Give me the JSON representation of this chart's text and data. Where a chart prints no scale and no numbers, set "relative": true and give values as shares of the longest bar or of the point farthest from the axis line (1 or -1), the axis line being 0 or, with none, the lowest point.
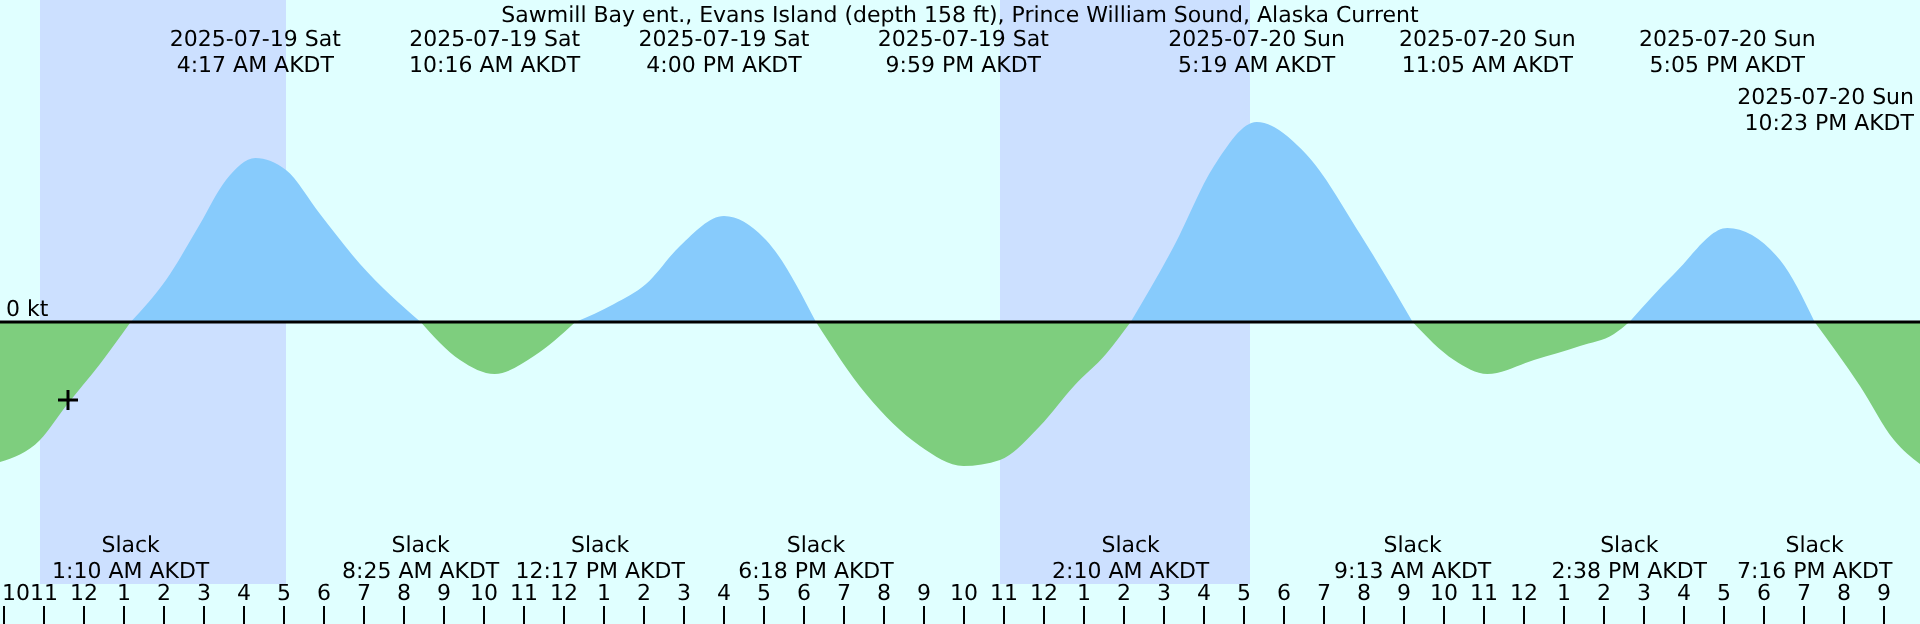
{
  "chart_data": {
    "type": "area",
    "relative": true,
    "title": "Sawmill Bay ent., Evans Island (depth 158 ft), Prince William Sound, Alaska Current",
    "xlim": [
      "2025-07-18T21:54",
      "2025-07-20T21:54"
    ],
    "xticks": [
      {
        "value": "2025-07-18T22:00",
        "label": "10"
      },
      {
        "value": "2025-07-18T23:00",
        "label": "11"
      },
      {
        "value": "2025-07-19T00:00",
        "label": "12"
      },
      {
        "value": "2025-07-19T01:00",
        "label": "1"
      },
      {
        "value": "2025-07-19T02:00",
        "label": "2"
      },
      {
        "value": "2025-07-19T03:00",
        "label": "3"
      },
      {
        "value": "2025-07-19T04:00",
        "label": "4"
      },
      {
        "value": "2025-07-19T05:00",
        "label": "5"
      },
      {
        "value": "2025-07-19T06:00",
        "label": "6"
      },
      {
        "value": "2025-07-19T07:00",
        "label": "7"
      },
      {
        "value": "2025-07-19T08:00",
        "label": "8"
      },
      {
        "value": "2025-07-19T09:00",
        "label": "9"
      },
      {
        "value": "2025-07-19T10:00",
        "label": "10"
      },
      {
        "value": "2025-07-19T11:00",
        "label": "11"
      },
      {
        "value": "2025-07-19T12:00",
        "label": "12"
      },
      {
        "value": "2025-07-19T13:00",
        "label": "1"
      },
      {
        "value": "2025-07-19T14:00",
        "label": "2"
      },
      {
        "value": "2025-07-19T15:00",
        "label": "3"
      },
      {
        "value": "2025-07-19T16:00",
        "label": "4"
      },
      {
        "value": "2025-07-19T17:00",
        "label": "5"
      },
      {
        "value": "2025-07-19T18:00",
        "label": "6"
      },
      {
        "value": "2025-07-19T19:00",
        "label": "7"
      },
      {
        "value": "2025-07-19T20:00",
        "label": "8"
      },
      {
        "value": "2025-07-19T21:00",
        "label": "9"
      },
      {
        "value": "2025-07-19T22:00",
        "label": "10"
      },
      {
        "value": "2025-07-19T23:00",
        "label": "11"
      },
      {
        "value": "2025-07-20T00:00",
        "label": "12"
      },
      {
        "value": "2025-07-20T01:00",
        "label": "1"
      },
      {
        "value": "2025-07-20T02:00",
        "label": "2"
      },
      {
        "value": "2025-07-20T03:00",
        "label": "3"
      },
      {
        "value": "2025-07-20T04:00",
        "label": "4"
      },
      {
        "value": "2025-07-20T05:00",
        "label": "5"
      },
      {
        "value": "2025-07-20T06:00",
        "label": "6"
      },
      {
        "value": "2025-07-20T07:00",
        "label": "7"
      },
      {
        "value": "2025-07-20T08:00",
        "label": "8"
      },
      {
        "value": "2025-07-20T09:00",
        "label": "9"
      },
      {
        "value": "2025-07-20T10:00",
        "label": "10"
      },
      {
        "value": "2025-07-20T11:00",
        "label": "11"
      },
      {
        "value": "2025-07-20T12:00",
        "label": "12"
      },
      {
        "value": "2025-07-20T13:00",
        "label": "1"
      },
      {
        "value": "2025-07-20T14:00",
        "label": "2"
      },
      {
        "value": "2025-07-20T15:00",
        "label": "3"
      },
      {
        "value": "2025-07-20T16:00",
        "label": "4"
      },
      {
        "value": "2025-07-20T17:00",
        "label": "5"
      },
      {
        "value": "2025-07-20T18:00",
        "label": "6"
      },
      {
        "value": "2025-07-20T19:00",
        "label": "7"
      },
      {
        "value": "2025-07-20T20:00",
        "label": "8"
      },
      {
        "value": "2025-07-20T21:00",
        "label": "9"
      }
    ],
    "series": [
      {
        "color": "#7ece7e",
        "x": [
          "2025-07-18T21:54",
          "2025-07-18T22:54",
          "2025-07-18T23:33",
          "2025-07-19T00:24",
          "2025-07-19T01:10"
        ],
        "values": [
          -0.7,
          -0.59,
          -0.42,
          -0.21,
          0
        ]
      },
      {
        "color": "#87cbfc",
        "x": [
          "2025-07-19T01:10",
          "2025-07-19T02:03",
          "2025-07-19T02:54",
          "2025-07-19T03:33",
          "2025-07-19T04:17",
          "2025-07-19T05:03",
          "2025-07-19T05:54",
          "2025-07-19T06:54",
          "2025-07-19T08:25"
        ],
        "values": [
          0,
          0.21,
          0.49,
          0.71,
          0.82,
          0.76,
          0.54,
          0.29,
          0
        ]
      },
      {
        "color": "#7ece7e",
        "x": [
          "2025-07-19T08:25",
          "2025-07-19T09:24",
          "2025-07-19T10:16",
          "2025-07-19T11:15",
          "2025-07-19T12:17"
        ],
        "values": [
          0,
          -0.19,
          -0.26,
          -0.17,
          0
        ]
      },
      {
        "color": "#87cbfc",
        "x": [
          "2025-07-19T12:17",
          "2025-07-19T13:15",
          "2025-07-19T14:03",
          "2025-07-19T14:54",
          "2025-07-19T16:00",
          "2025-07-19T17:03",
          "2025-07-19T18:18"
        ],
        "values": [
          0,
          0.09,
          0.19,
          0.38,
          0.53,
          0.41,
          0
        ]
      },
      {
        "color": "#7ece7e",
        "x": [
          "2025-07-19T18:18",
          "2025-07-19T19:33",
          "2025-07-19T20:54",
          "2025-07-19T21:59",
          "2025-07-19T22:54",
          "2025-07-19T23:54",
          "2025-07-20T00:45",
          "2025-07-20T01:33",
          "2025-07-20T02:10"
        ],
        "values": [
          0,
          -0.36,
          -0.62,
          -0.72,
          -0.69,
          -0.52,
          -0.32,
          -0.16,
          0
        ]
      },
      {
        "color": "#87cbfc",
        "x": [
          "2025-07-20T02:10",
          "2025-07-20T03:15",
          "2025-07-20T04:15",
          "2025-07-20T05:19",
          "2025-07-20T06:33",
          "2025-07-20T07:54",
          "2025-07-20T09:13"
        ],
        "values": [
          0,
          0.38,
          0.78,
          1,
          0.84,
          0.44,
          0
        ]
      },
      {
        "color": "#7ece7e",
        "x": [
          "2025-07-20T09:13",
          "2025-07-20T10:15",
          "2025-07-20T11:05",
          "2025-07-20T12:15",
          "2025-07-20T13:24",
          "2025-07-20T14:15",
          "2025-07-20T14:38"
        ],
        "values": [
          0,
          -0.19,
          -0.26,
          -0.19,
          -0.12,
          -0.06,
          0
        ]
      },
      {
        "color": "#87cbfc",
        "x": [
          "2025-07-20T14:38",
          "2025-07-20T15:45",
          "2025-07-20T17:05",
          "2025-07-20T18:24",
          "2025-07-20T19:16"
        ],
        "values": [
          0,
          0.24,
          0.47,
          0.31,
          0
        ]
      },
      {
        "color": "#7ece7e",
        "x": [
          "2025-07-20T19:16",
          "2025-07-20T20:24",
          "2025-07-20T21:15",
          "2025-07-20T21:54"
        ],
        "values": [
          0,
          -0.32,
          -0.59,
          -0.71
        ]
      },
      {
        "type": "scatter",
        "marker": "cross",
        "color": "#000000",
        "x": [
          "2025-07-18T23:36"
        ],
        "values": [
          -0.39
        ]
      }
    ],
    "ref_lines": [
      {
        "axis": "y",
        "value": 0,
        "label": "0 kt",
        "color": "#000000"
      }
    ],
    "bands": [
      {
        "axis": "x",
        "from": "2025-07-18T22:54",
        "to": "2025-07-19T05:03",
        "color": "#cce0ff"
      },
      {
        "axis": "x",
        "from": "2025-07-19T22:54",
        "to": "2025-07-20T05:09",
        "color": "#cce0ff"
      }
    ],
    "annotations": [
      "Slack\n1:10 AM AKDT",
      "2025-07-19 Sat\n4:17 AM AKDT",
      "Slack\n8:25 AM AKDT",
      "2025-07-19 Sat\n10:16 AM AKDT",
      "Slack\n12:17 PM AKDT",
      "2025-07-19 Sat\n4:00 PM AKDT",
      "Slack\n6:18 PM AKDT",
      "2025-07-19 Sat\n9:59 PM AKDT",
      "Slack\n2:10 AM AKDT",
      "2025-07-20 Sun\n5:19 AM AKDT",
      "Slack\n9:13 AM AKDT",
      "2025-07-20 Sun\n11:05 AM AKDT",
      "Slack\n2:38 PM AKDT",
      "2025-07-20 Sun\n5:05 PM AKDT",
      "Slack\n7:16 PM AKDT",
      "2025-07-20 Sun\n10:23 PM AKDT"
    ]
  }
}
